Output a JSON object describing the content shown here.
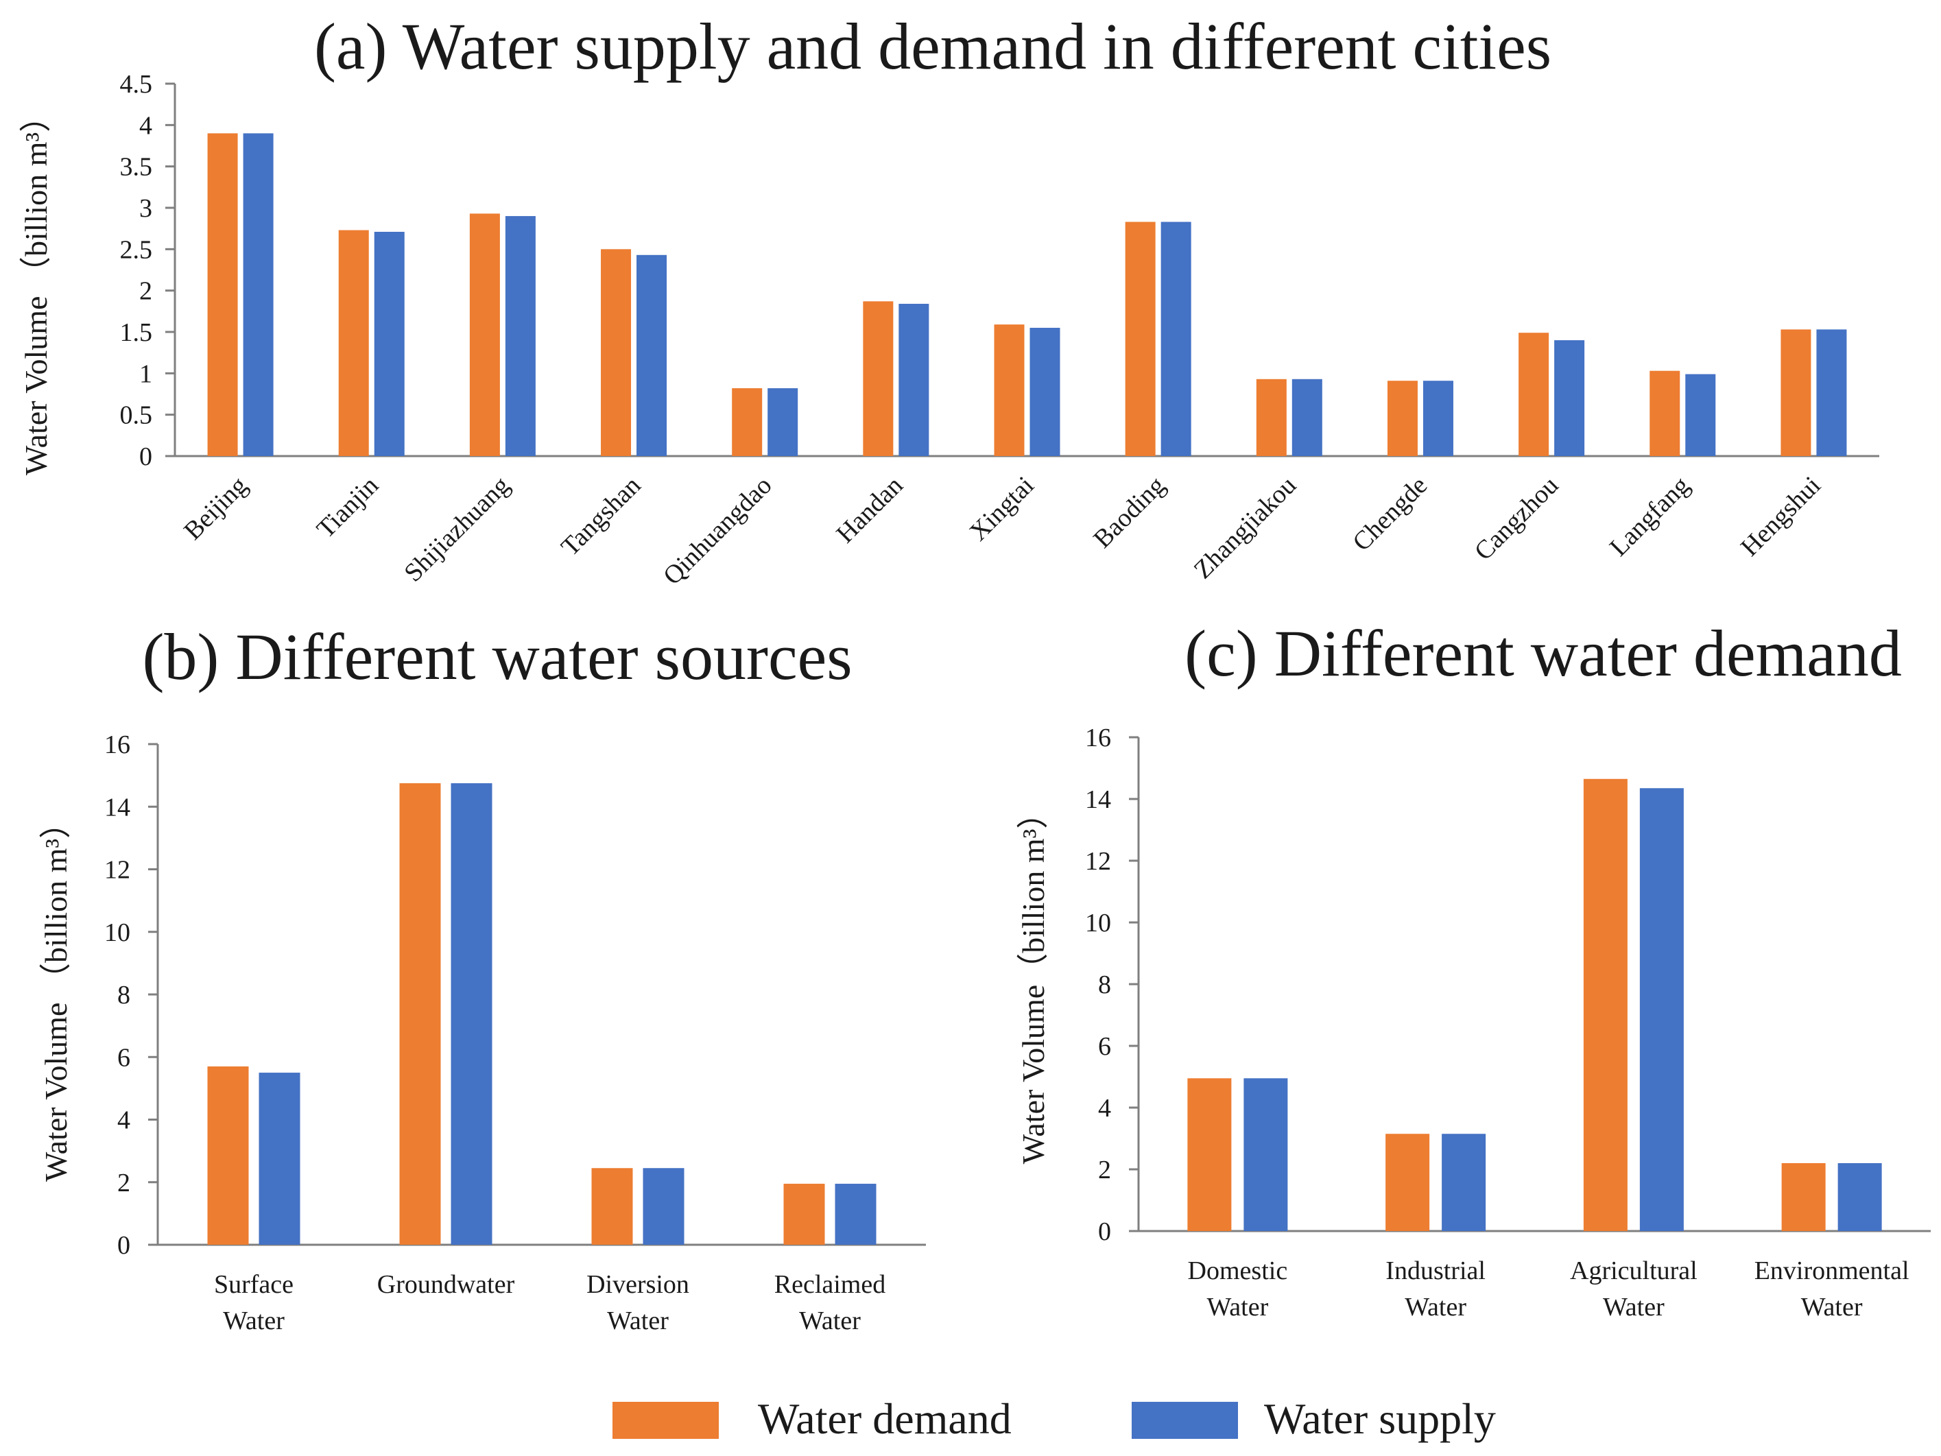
{
  "series_names": [
    "Water demand",
    "Water supply"
  ],
  "colors": {
    "demand": "#ED7D31",
    "supply": "#4472C4",
    "axis": "#7f7f7f",
    "text": "#1a1a1a"
  },
  "legend": {
    "demand_label": "Water demand",
    "supply_label": "Water supply"
  },
  "chart_data": [
    {
      "id": "a",
      "type": "bar",
      "title": "(a) Water supply and demand in different cities",
      "xlabel": "",
      "ylabel": "Water Volume （billion  m³）",
      "ylim": [
        0,
        4.5
      ],
      "yticks": [
        "0",
        "0.5",
        "1",
        "1.5",
        "2",
        "2.5",
        "3",
        "3.5",
        "4",
        "4.5"
      ],
      "categories": [
        "Beijing",
        "Tianjin",
        "Shijiazhuang",
        "Tangshan",
        "Qinhuangdao",
        "Handan",
        "Xingtai",
        "Baoding",
        "Zhangjiakou",
        "Chengde",
        "Cangzhou",
        "Langfang",
        "Hengshui"
      ],
      "series": [
        {
          "name": "Water demand",
          "values": [
            3.9,
            2.73,
            2.93,
            2.5,
            0.82,
            1.87,
            1.59,
            2.83,
            0.93,
            0.91,
            1.49,
            1.03,
            1.53
          ]
        },
        {
          "name": "Water supply",
          "values": [
            3.9,
            2.71,
            2.9,
            2.43,
            0.82,
            1.84,
            1.55,
            2.83,
            0.93,
            0.91,
            1.4,
            0.99,
            1.53
          ]
        }
      ]
    },
    {
      "id": "b",
      "type": "bar",
      "title": "(b) Different water sources",
      "xlabel": "",
      "ylabel": "Water Volume （billion m³）",
      "ylim": [
        0,
        16
      ],
      "yticks": [
        "0",
        "2",
        "4",
        "6",
        "8",
        "10",
        "12",
        "14",
        "16"
      ],
      "categories": [
        [
          "Surface",
          "Water"
        ],
        [
          "Groundwater"
        ],
        [
          "Diversion",
          "Water"
        ],
        [
          "Reclaimed",
          "Water"
        ]
      ],
      "series": [
        {
          "name": "Water demand",
          "values": [
            5.7,
            14.75,
            2.45,
            1.95
          ]
        },
        {
          "name": "Water supply",
          "values": [
            5.5,
            14.75,
            2.45,
            1.95
          ]
        }
      ]
    },
    {
      "id": "c",
      "type": "bar",
      "title": "(c) Different water demand",
      "xlabel": "",
      "ylabel": "Water Volume（billion m³）",
      "ylim": [
        0,
        16
      ],
      "yticks": [
        "0",
        "2",
        "4",
        "6",
        "8",
        "10",
        "12",
        "14",
        "16"
      ],
      "categories": [
        [
          "Domestic",
          "Water"
        ],
        [
          "Industrial",
          "Water"
        ],
        [
          "Agricultural",
          "Water"
        ],
        [
          "Environmental",
          "Water"
        ]
      ],
      "series": [
        {
          "name": "Water demand",
          "values": [
            4.95,
            3.15,
            14.65,
            2.2
          ]
        },
        {
          "name": "Water supply",
          "values": [
            4.95,
            3.15,
            14.35,
            2.2
          ]
        }
      ]
    }
  ]
}
